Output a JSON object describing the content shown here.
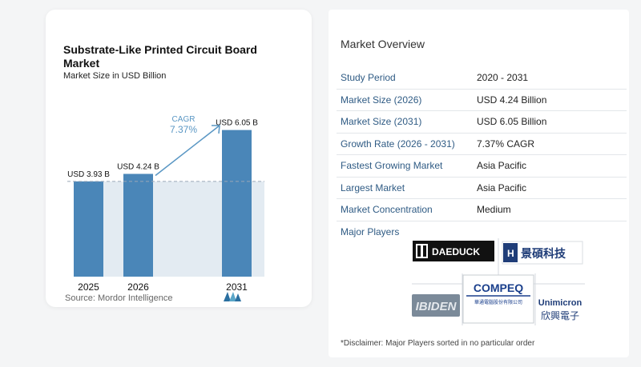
{
  "chart_data": {
    "type": "bar",
    "title": "Substrate-Like Printed Circuit Board Market",
    "subtitle": "Market Size in USD Billion",
    "categories": [
      "2025",
      "2026",
      "2031"
    ],
    "values": [
      3.93,
      4.24,
      6.05
    ],
    "value_labels": [
      "USD 3.93 B",
      "USD 4.24 B",
      "USD 6.05 B"
    ],
    "cagr_label": "CAGR",
    "cagr_value": "7.37%",
    "ylim": [
      0,
      6.4
    ],
    "colors": {
      "bar": "#4a86b8",
      "band": "#e3ebf2",
      "arrow": "#5a97c4",
      "cagr_text": "#5a97c4"
    }
  },
  "source": "Source: Mordor Intelligence",
  "overview": {
    "title": "Market Overview",
    "rows": [
      {
        "label": "Study Period",
        "value": "2020 - 2031"
      },
      {
        "label": "Market Size (2026)",
        "value": "USD 4.24 Billion"
      },
      {
        "label": "Market Size (2031)",
        "value": "USD 6.05 Billion"
      },
      {
        "label": "Growth Rate (2026 - 2031)",
        "value": "7.37% CAGR"
      },
      {
        "label": "Fastest Growing Market",
        "value": "Asia Pacific"
      },
      {
        "label": "Largest Market",
        "value": "Asia Pacific"
      },
      {
        "label": "Market Concentration",
        "value": "Medium"
      }
    ]
  },
  "players": {
    "title": "Major Players",
    "daeduck": "DAEDUCK",
    "kinsus": "景碩科技",
    "compeq": "COMPEQ",
    "compeq_sub": "華通電腦股份有限公司",
    "ibiden": "IBIDEN",
    "unimicron": "Unimicron",
    "unimicron_sub": "欣興電子"
  },
  "disclaimer": "*Disclaimer: Major Players sorted in no particular order"
}
